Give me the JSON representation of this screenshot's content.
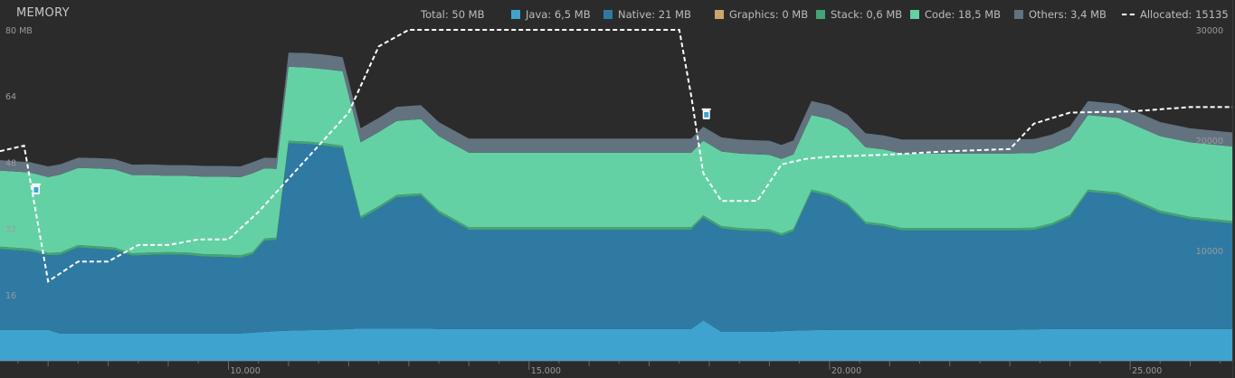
{
  "panel": {
    "title": "MEMORY"
  },
  "legend": [
    {
      "label": "Total: 50 MB",
      "swatch": ""
    },
    {
      "label": "Java: 6,5 MB",
      "swatch": "#3fa3cf"
    },
    {
      "label": "Native: 21 MB",
      "swatch": "#2f7aa3"
    },
    {
      "label": "Graphics: 0 MB",
      "swatch": "#c9a66b"
    },
    {
      "label": "Stack: 0,6 MB",
      "swatch": "#43a475"
    },
    {
      "label": "Code: 18,5 MB",
      "swatch": "#64d1a5"
    },
    {
      "label": "Others: 3,4 MB",
      "swatch": "#62727f"
    },
    {
      "label": "Allocated: 15135",
      "swatch": "dashed"
    }
  ],
  "chart_data": {
    "type": "area",
    "stacked": true,
    "xlim": [
      6.2,
      26.7
    ],
    "x_ticks": [
      {
        "value": 10,
        "label": "10.000"
      },
      {
        "value": 15,
        "label": "15.000"
      },
      {
        "value": 20,
        "label": "20.000"
      },
      {
        "value": 25,
        "label": "25.000"
      }
    ],
    "y_left": {
      "lim": [
        0,
        80
      ],
      "ticks": [
        {
          "value": 80,
          "label": "80 MB"
        },
        {
          "value": 64,
          "label": "64"
        },
        {
          "value": 48,
          "label": "48"
        },
        {
          "value": 32,
          "label": "32"
        },
        {
          "value": 16,
          "label": "16"
        }
      ]
    },
    "y_right": {
      "lim": [
        0,
        30000
      ],
      "ticks": [
        {
          "value": 30000,
          "label": "30000"
        },
        {
          "value": 20000,
          "label": "20000"
        },
        {
          "value": 10000,
          "label": "10000"
        }
      ]
    },
    "x": [
      6.2,
      6.7,
      7.0,
      7.2,
      7.5,
      7.8,
      8.1,
      8.4,
      8.7,
      9.0,
      9.3,
      9.6,
      9.9,
      10.2,
      10.4,
      10.6,
      10.8,
      11.0,
      11.3,
      11.6,
      11.9,
      12.2,
      12.5,
      12.8,
      13.2,
      13.5,
      14.0,
      15.0,
      16.0,
      17.0,
      17.5,
      17.7,
      17.9,
      18.2,
      18.5,
      18.8,
      19.0,
      19.2,
      19.4,
      19.7,
      20.0,
      20.3,
      20.6,
      20.9,
      21.2,
      22.0,
      23.0,
      23.4,
      23.7,
      24.0,
      24.3,
      24.8,
      25.5,
      26.0,
      26.7
    ],
    "series": [
      {
        "name": "Java",
        "color": "#3fa3cf",
        "values": [
          7.5,
          7.5,
          7.5,
          6.6,
          6.6,
          6.6,
          6.6,
          6.6,
          6.6,
          6.6,
          6.6,
          6.6,
          6.6,
          6.6,
          6.8,
          7.0,
          7.2,
          7.3,
          7.4,
          7.5,
          7.6,
          7.8,
          7.8,
          7.8,
          7.8,
          7.7,
          7.7,
          7.7,
          7.7,
          7.7,
          7.7,
          7.7,
          9.8,
          7.0,
          7.0,
          7.0,
          7.0,
          7.2,
          7.3,
          7.4,
          7.5,
          7.5,
          7.5,
          7.5,
          7.5,
          7.5,
          7.5,
          7.6,
          7.7,
          7.7,
          7.7,
          7.7,
          7.7,
          7.7,
          7.7
        ]
      },
      {
        "name": "Native",
        "color": "#2f7aa3",
        "values": [
          19.5,
          19.0,
          18.0,
          19.0,
          20.8,
          20.5,
          20.2,
          18.8,
          19.0,
          19.1,
          19.0,
          18.6,
          18.5,
          18.3,
          18.9,
          22.0,
          22.0,
          45.3,
          45.0,
          44.5,
          43.8,
          26.5,
          29.0,
          31.7,
          32.1,
          28.0,
          24.0,
          24.0,
          24.0,
          24.0,
          24.0,
          24.0,
          24.8,
          25.0,
          24.5,
          24.3,
          24.2,
          23.0,
          24.0,
          33.4,
          32.3,
          30.0,
          25.5,
          25.0,
          24.0,
          24.0,
          24.0,
          24.0,
          25.0,
          27.0,
          33.1,
          32.4,
          28.0,
          26.5,
          25.5
        ]
      },
      {
        "name": "Graphics",
        "color": "#c9a66b",
        "values": [
          0,
          0,
          0,
          0,
          0,
          0,
          0,
          0,
          0,
          0,
          0,
          0,
          0,
          0,
          0,
          0,
          0,
          0,
          0,
          0,
          0,
          0,
          0,
          0,
          0,
          0,
          0,
          0,
          0,
          0,
          0,
          0,
          0,
          0,
          0,
          0,
          0,
          0,
          0,
          0,
          0,
          0,
          0,
          0,
          0,
          0,
          0,
          0,
          0,
          0,
          0,
          0,
          0,
          0,
          0
        ]
      },
      {
        "name": "Stack",
        "color": "#43a475",
        "values": [
          0.6,
          0.6,
          0.6,
          0.6,
          0.6,
          0.6,
          0.6,
          0.6,
          0.6,
          0.6,
          0.6,
          0.6,
          0.6,
          0.6,
          0.6,
          0.6,
          0.6,
          0.6,
          0.6,
          0.6,
          0.6,
          0.6,
          0.6,
          0.6,
          0.6,
          0.6,
          0.6,
          0.6,
          0.6,
          0.6,
          0.6,
          0.6,
          0.6,
          0.6,
          0.6,
          0.6,
          0.6,
          0.6,
          0.6,
          0.6,
          0.6,
          0.6,
          0.6,
          0.6,
          0.6,
          0.6,
          0.6,
          0.6,
          0.6,
          0.6,
          0.6,
          0.6,
          0.6,
          0.6,
          0.6
        ]
      },
      {
        "name": "Code",
        "color": "#64d1a5",
        "values": [
          18.4,
          18.4,
          18.3,
          18.8,
          18.6,
          18.8,
          18.9,
          18.9,
          18.7,
          18.4,
          18.5,
          18.7,
          18.8,
          18.9,
          19.0,
          16.9,
          16.6,
          17.9,
          17.9,
          17.9,
          18.0,
          17.9,
          17.9,
          17.9,
          17.9,
          18.0,
          18.0,
          18.0,
          18.0,
          18.0,
          18.0,
          18.0,
          18.0,
          18.0,
          18.0,
          18.0,
          18.0,
          18.0,
          18.0,
          18.0,
          18.0,
          18.0,
          18.0,
          18.0,
          18.0,
          18.0,
          18.0,
          18.0,
          18.0,
          18.0,
          18.0,
          18.0,
          18.0,
          18.0,
          18.0
        ]
      },
      {
        "name": "Others",
        "color": "#62727f",
        "values": [
          2.5,
          2.5,
          2.6,
          2.5,
          2.5,
          2.5,
          2.5,
          2.5,
          2.6,
          2.6,
          2.6,
          2.6,
          2.6,
          2.6,
          2.7,
          2.6,
          2.6,
          3.4,
          3.5,
          3.5,
          3.4,
          3.4,
          3.4,
          3.4,
          3.4,
          3.4,
          3.4,
          3.4,
          3.4,
          3.4,
          3.4,
          3.4,
          3.4,
          3.4,
          3.4,
          3.4,
          3.4,
          3.4,
          3.4,
          3.4,
          3.4,
          3.4,
          3.4,
          3.4,
          3.4,
          3.4,
          3.4,
          3.4,
          3.4,
          3.4,
          3.4,
          3.4,
          3.4,
          3.4,
          3.4
        ]
      }
    ],
    "allocated": {
      "name": "Allocated",
      "axis": "right",
      "color": "#ffffff",
      "x": [
        6.2,
        6.6,
        7.0,
        7.5,
        8.0,
        8.5,
        9.0,
        9.5,
        10.0,
        10.5,
        11.0,
        11.5,
        12.0,
        12.5,
        13.0,
        15.0,
        16.0,
        17.0,
        17.5,
        17.7,
        17.9,
        18.2,
        18.5,
        18.8,
        19.2,
        19.6,
        20.0,
        21.0,
        22.0,
        23.0,
        23.4,
        24.0,
        25.0,
        26.0,
        26.7
      ],
      "values": [
        19000,
        19500,
        7200,
        9000,
        9000,
        10500,
        10500,
        11000,
        11000,
        13500,
        16500,
        19500,
        22500,
        28500,
        30000,
        30000,
        30000,
        30000,
        30000,
        24000,
        17000,
        14500,
        14500,
        14500,
        17800,
        18300,
        18500,
        18700,
        19000,
        19200,
        21500,
        22500,
        22600,
        23000,
        23000
      ]
    },
    "gc_events": [
      {
        "x": 6.8,
        "allocated": 15500
      },
      {
        "x": 17.95,
        "allocated": 22300
      }
    ]
  }
}
